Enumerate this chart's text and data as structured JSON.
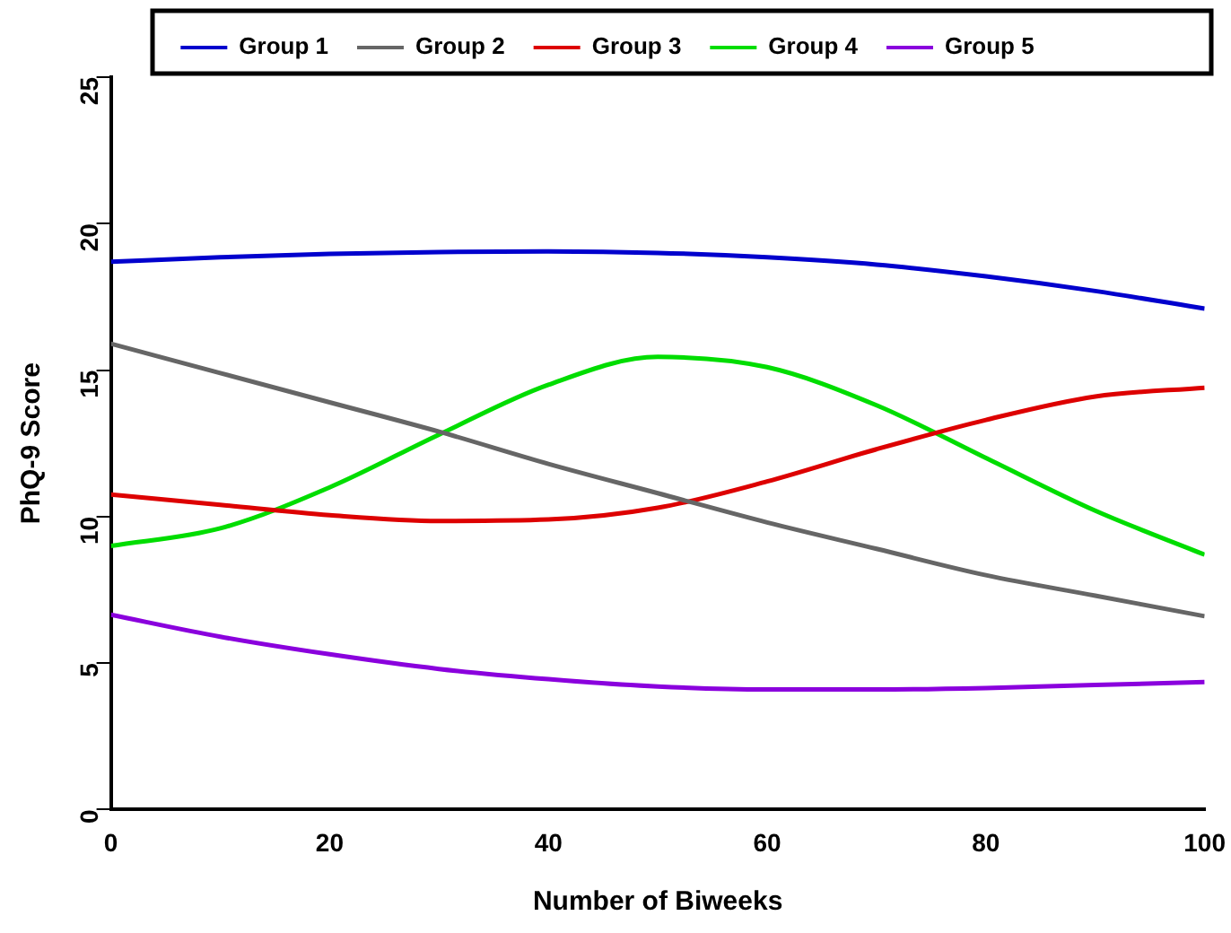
{
  "chart_data": {
    "type": "line",
    "xlabel": "Number of Biweeks",
    "ylabel": "PhQ-9 Score",
    "x": [
      0,
      10,
      20,
      30,
      40,
      50,
      60,
      70,
      80,
      90,
      100
    ],
    "series": [
      {
        "name": "Group 1",
        "color": "#0000cd",
        "values": [
          18.7,
          18.85,
          18.97,
          19.03,
          19.05,
          19.0,
          18.85,
          18.6,
          18.2,
          17.7,
          17.1
        ]
      },
      {
        "name": "Group 2",
        "color": "#666666",
        "values": [
          15.9,
          14.9,
          13.9,
          12.9,
          11.8,
          10.8,
          9.8,
          8.9,
          8.0,
          7.3,
          6.6
        ]
      },
      {
        "name": "Group 3",
        "color": "#dd0000",
        "values": [
          10.75,
          10.4,
          10.05,
          9.85,
          9.9,
          10.3,
          11.2,
          12.3,
          13.3,
          14.1,
          14.4
        ]
      },
      {
        "name": "Group 4",
        "color": "#00dd00",
        "values": [
          9.0,
          9.6,
          11.0,
          12.8,
          14.5,
          15.45,
          15.1,
          13.8,
          12.0,
          10.2,
          8.7
        ]
      },
      {
        "name": "Group 5",
        "color": "#8a00dd",
        "values": [
          6.65,
          5.9,
          5.3,
          4.8,
          4.45,
          4.2,
          4.1,
          4.1,
          4.15,
          4.25,
          4.35
        ]
      }
    ],
    "xlim": [
      0,
      100
    ],
    "xticks": [
      0,
      20,
      40,
      60,
      80,
      100
    ],
    "ylim": [
      0,
      25
    ],
    "yticks": [
      0,
      5,
      10,
      15,
      20,
      25
    ],
    "grid": false,
    "legend": "top",
    "marker": "none",
    "line_style": "solid"
  }
}
